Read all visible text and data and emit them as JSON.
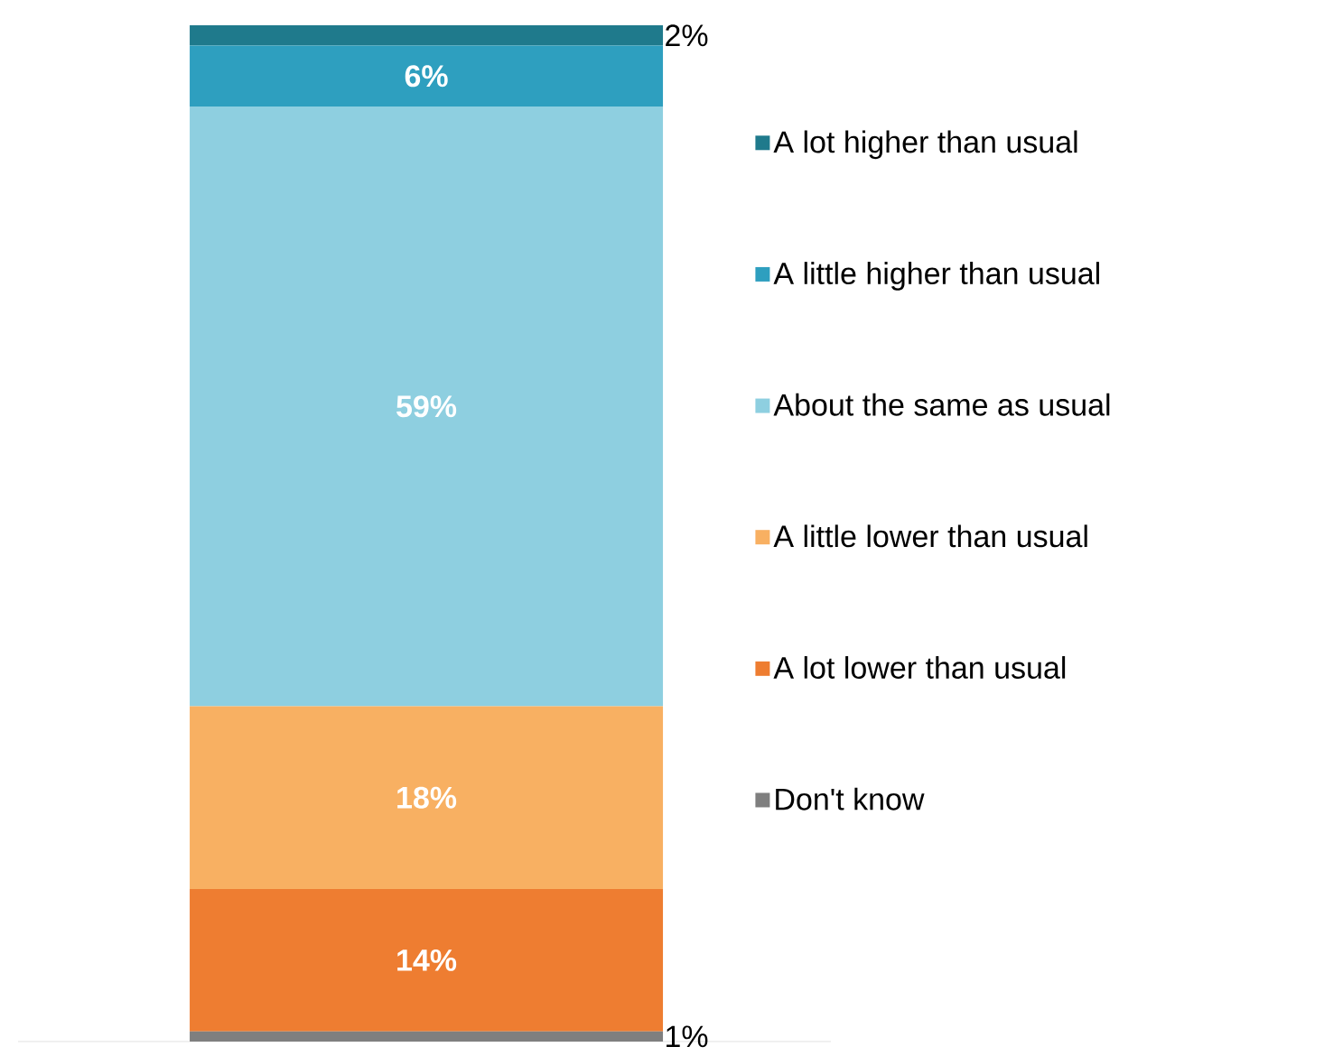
{
  "chart_data": {
    "type": "bar",
    "stacked": true,
    "categories": [
      null
    ],
    "legend": "right",
    "series": [
      {
        "name": "Don't know",
        "color": "#7f7f7f",
        "values": [
          1
        ],
        "value_labels": [
          "1%"
        ]
      },
      {
        "name": "A lot lower than usual",
        "color": "#ee7d31",
        "values": [
          14
        ],
        "value_labels": [
          "14%"
        ]
      },
      {
        "name": "A little lower than usual",
        "color": "#f8b062",
        "values": [
          18
        ],
        "value_labels": [
          "18%"
        ]
      },
      {
        "name": "About the same as usual",
        "color": "#8ecfe0",
        "values": [
          59
        ],
        "value_labels": [
          "59%"
        ]
      },
      {
        "name": "A little higher than usual",
        "color": "#2e9fbf",
        "values": [
          6
        ],
        "value_labels": [
          "6%"
        ]
      },
      {
        "name": "A lot higher than usual",
        "color": "#1f7a8c",
        "values": [
          2
        ],
        "value_labels": [
          "2%"
        ]
      }
    ]
  }
}
